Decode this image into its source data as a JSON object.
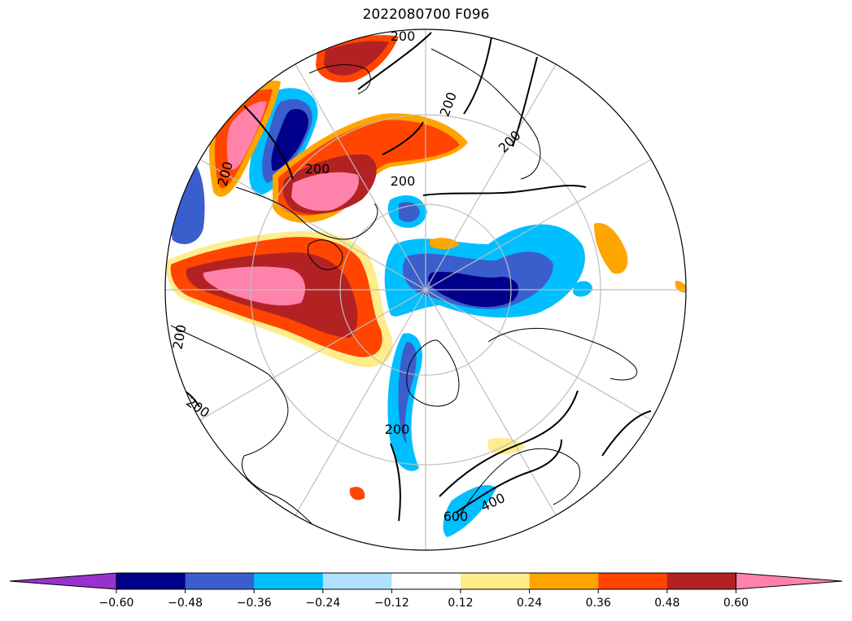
{
  "title": "2022080700 F096",
  "colorbar": {
    "colors": [
      "#9932CC",
      "#00008B",
      "#3A5FCD",
      "#00BFFF",
      "#B0E2FF",
      "#FFFFFF",
      "#FFEC8B",
      "#FFA500",
      "#FF4500",
      "#B22222",
      "#FF82AB"
    ],
    "tick_labels": [
      "−0.60",
      "−0.48",
      "−0.36",
      "−0.24",
      "−0.12",
      "0.12",
      "0.24",
      "0.36",
      "0.48",
      "0.60"
    ],
    "extend": "both"
  },
  "contour_labels": [
    "200",
    "200",
    "200",
    "200",
    "200",
    "200",
    "200",
    "200",
    "200",
    "400",
    "600"
  ],
  "map": {
    "projection": "north polar stereographic",
    "graticule_color": "#BEBEBE",
    "coastline_color": "#000000"
  }
}
